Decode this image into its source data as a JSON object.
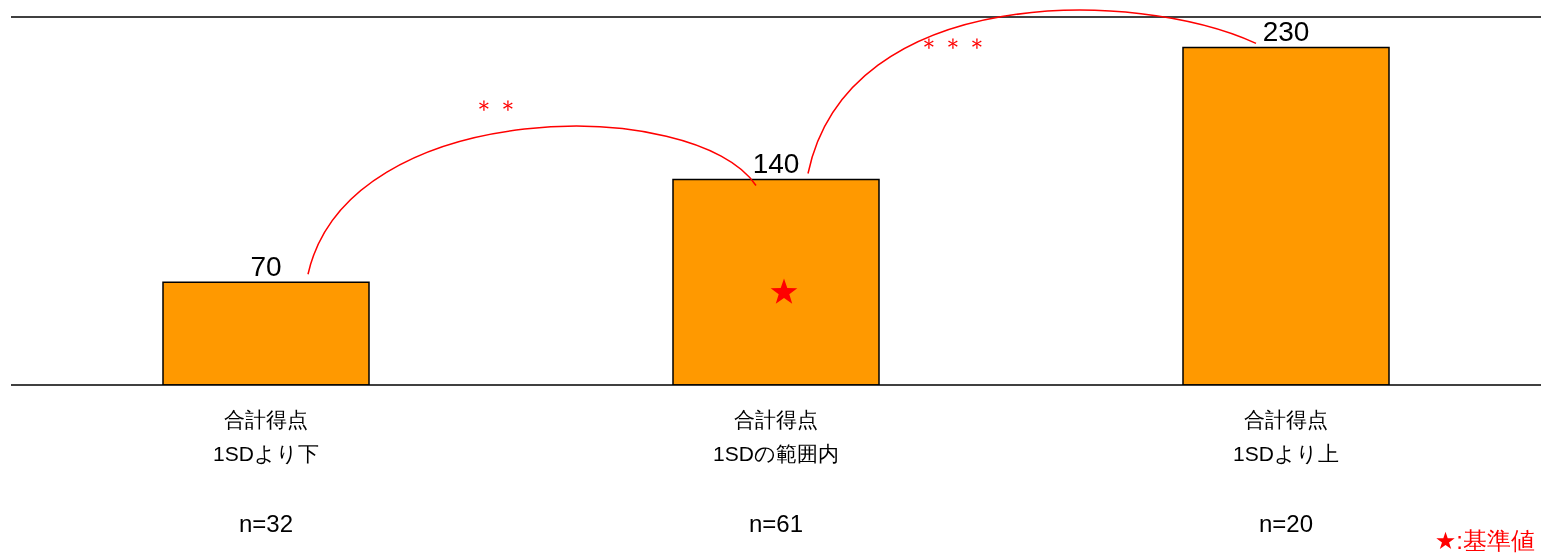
{
  "chart_data": {
    "type": "bar",
    "categories": [
      "合計得点\n1SDより下",
      "合計得点\n1SDの範囲内",
      "合計得点\n1SDより上"
    ],
    "values": [
      70,
      140,
      230
    ],
    "color": "#ff9900",
    "data_labels": true,
    "annotations": [
      "＊＊",
      "＊＊＊",
      "★:基準値",
      "n=32",
      "n=61",
      "n=20"
    ]
  }
}
